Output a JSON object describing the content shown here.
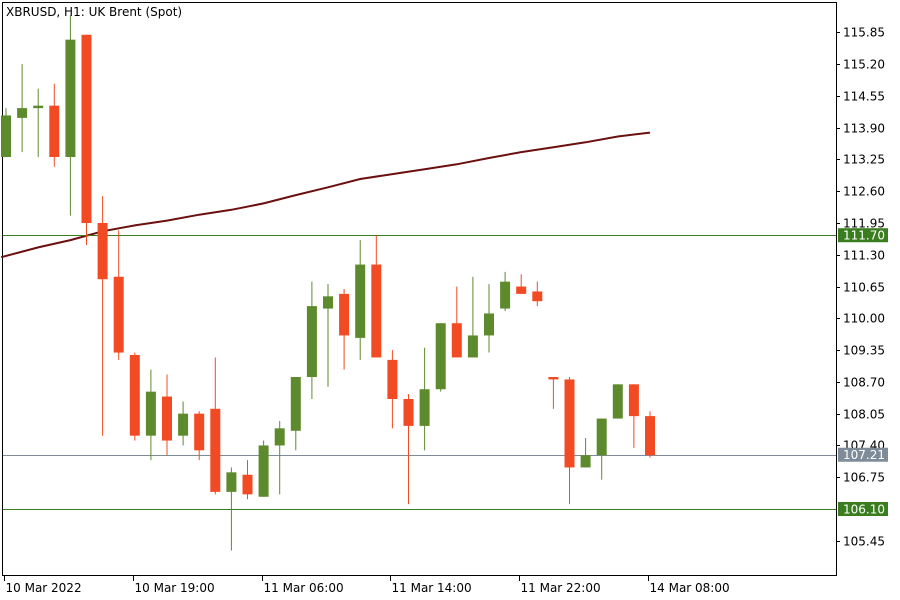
{
  "chart_data": {
    "type": "candlestick",
    "title": "XBRUSD, H1:  UK Brent (Spot)",
    "y_ticks": [
      "115.85",
      "115.20",
      "114.55",
      "113.90",
      "113.25",
      "112.60",
      "111.95",
      "111.30",
      "110.65",
      "110.00",
      "109.35",
      "108.70",
      "108.05",
      "107.40",
      "106.75",
      "105.45"
    ],
    "ylim": [
      104.75,
      116.45
    ],
    "x_ticks": [
      {
        "label": "10 Mar 2022",
        "index": 0
      },
      {
        "label": "10 Mar 19:00",
        "index": 8
      },
      {
        "label": "11 Mar 06:00",
        "index": 16
      },
      {
        "label": "11 Mar 14:00",
        "index": 24
      },
      {
        "label": "11 Mar 22:00",
        "index": 32
      },
      {
        "label": "14 Mar 08:00",
        "index": 40
      }
    ],
    "grid": false,
    "candles": [
      {
        "i": 0,
        "o": 113.3,
        "h": 114.3,
        "l": 113.3,
        "c": 114.15
      },
      {
        "i": 1,
        "o": 114.1,
        "h": 115.2,
        "l": 113.4,
        "c": 114.3
      },
      {
        "i": 2,
        "o": 114.3,
        "h": 114.7,
        "l": 113.3,
        "c": 114.35
      },
      {
        "i": 3,
        "o": 114.35,
        "h": 114.8,
        "l": 113.1,
        "c": 113.3
      },
      {
        "i": 4,
        "o": 113.3,
        "h": 116.2,
        "l": 112.1,
        "c": 115.7
      },
      {
        "i": 5,
        "o": 115.8,
        "h": 115.8,
        "l": 111.5,
        "c": 111.95
      },
      {
        "i": 6,
        "o": 111.95,
        "h": 112.5,
        "l": 107.6,
        "c": 110.8
      },
      {
        "i": 7,
        "o": 110.85,
        "h": 111.8,
        "l": 109.15,
        "c": 109.3
      },
      {
        "i": 8,
        "o": 109.25,
        "h": 109.3,
        "l": 107.5,
        "c": 107.6
      },
      {
        "i": 9,
        "o": 107.6,
        "h": 108.95,
        "l": 107.1,
        "c": 108.5
      },
      {
        "i": 10,
        "o": 108.4,
        "h": 108.85,
        "l": 107.2,
        "c": 107.5
      },
      {
        "i": 11,
        "o": 107.6,
        "h": 108.3,
        "l": 107.4,
        "c": 108.05
      },
      {
        "i": 12,
        "o": 108.05,
        "h": 108.1,
        "l": 107.1,
        "c": 107.3
      },
      {
        "i": 13,
        "o": 108.15,
        "h": 109.2,
        "l": 106.4,
        "c": 106.45
      },
      {
        "i": 14,
        "o": 106.45,
        "h": 106.95,
        "l": 105.25,
        "c": 106.85
      },
      {
        "i": 15,
        "o": 106.8,
        "h": 107.1,
        "l": 106.3,
        "c": 106.4
      },
      {
        "i": 16,
        "o": 106.35,
        "h": 107.5,
        "l": 106.35,
        "c": 107.4
      },
      {
        "i": 17,
        "o": 107.4,
        "h": 107.9,
        "l": 106.4,
        "c": 107.75
      },
      {
        "i": 18,
        "o": 107.7,
        "h": 108.8,
        "l": 107.3,
        "c": 108.8
      },
      {
        "i": 19,
        "o": 108.8,
        "h": 110.75,
        "l": 108.35,
        "c": 110.25
      },
      {
        "i": 20,
        "o": 110.2,
        "h": 110.7,
        "l": 108.6,
        "c": 110.45
      },
      {
        "i": 21,
        "o": 110.5,
        "h": 110.6,
        "l": 108.95,
        "c": 109.65
      },
      {
        "i": 22,
        "o": 109.6,
        "h": 111.6,
        "l": 109.15,
        "c": 111.1
      },
      {
        "i": 23,
        "o": 111.1,
        "h": 111.7,
        "l": 109.2,
        "c": 109.2
      },
      {
        "i": 24,
        "o": 109.15,
        "h": 109.35,
        "l": 107.75,
        "c": 108.35
      },
      {
        "i": 25,
        "o": 108.35,
        "h": 108.45,
        "l": 106.2,
        "c": 107.8
      },
      {
        "i": 26,
        "o": 107.8,
        "h": 109.4,
        "l": 107.3,
        "c": 108.55
      },
      {
        "i": 27,
        "o": 108.55,
        "h": 109.9,
        "l": 108.5,
        "c": 109.9
      },
      {
        "i": 28,
        "o": 109.9,
        "h": 110.65,
        "l": 109.2,
        "c": 109.2
      },
      {
        "i": 29,
        "o": 109.2,
        "h": 110.85,
        "l": 109.2,
        "c": 109.65
      },
      {
        "i": 30,
        "o": 109.65,
        "h": 110.7,
        "l": 109.3,
        "c": 110.1
      },
      {
        "i": 31,
        "o": 110.2,
        "h": 110.95,
        "l": 110.15,
        "c": 110.75
      },
      {
        "i": 32,
        "o": 110.65,
        "h": 110.9,
        "l": 110.5,
        "c": 110.5
      },
      {
        "i": 33,
        "o": 110.55,
        "h": 110.75,
        "l": 110.25,
        "c": 110.35
      },
      {
        "i": 34,
        "o": 108.8,
        "h": 108.8,
        "l": 108.15,
        "c": 108.75
      },
      {
        "i": 35,
        "o": 108.75,
        "h": 108.8,
        "l": 106.2,
        "c": 106.95
      },
      {
        "i": 36,
        "o": 106.95,
        "h": 107.55,
        "l": 106.95,
        "c": 107.2
      },
      {
        "i": 37,
        "o": 107.2,
        "h": 107.95,
        "l": 106.7,
        "c": 107.95
      },
      {
        "i": 38,
        "o": 107.95,
        "h": 108.65,
        "l": 107.95,
        "c": 108.65
      },
      {
        "i": 39,
        "o": 108.65,
        "h": 108.65,
        "l": 107.35,
        "c": 108.0
      },
      {
        "i": 40,
        "o": 108.0,
        "h": 108.1,
        "l": 107.15,
        "c": 107.2
      }
    ],
    "moving_average": [
      {
        "i": -0.3,
        "v": 111.25
      },
      {
        "i": 2,
        "v": 111.45
      },
      {
        "i": 4,
        "v": 111.6
      },
      {
        "i": 6,
        "v": 111.78
      },
      {
        "i": 8,
        "v": 111.9
      },
      {
        "i": 10,
        "v": 112.0
      },
      {
        "i": 12,
        "v": 112.12
      },
      {
        "i": 14,
        "v": 112.22
      },
      {
        "i": 16,
        "v": 112.35
      },
      {
        "i": 18,
        "v": 112.52
      },
      {
        "i": 20,
        "v": 112.68
      },
      {
        "i": 22,
        "v": 112.85
      },
      {
        "i": 24,
        "v": 112.95
      },
      {
        "i": 26,
        "v": 113.05
      },
      {
        "i": 28,
        "v": 113.15
      },
      {
        "i": 30,
        "v": 113.28
      },
      {
        "i": 32,
        "v": 113.4
      },
      {
        "i": 34,
        "v": 113.5
      },
      {
        "i": 36,
        "v": 113.6
      },
      {
        "i": 38,
        "v": 113.72
      },
      {
        "i": 40,
        "v": 113.8
      }
    ],
    "horizontal_lines": [
      {
        "value": 111.7,
        "label": "111.70",
        "badge_color": "#3a7d1e"
      },
      {
        "value": 107.21,
        "label": "107.21",
        "badge_color": "#7e8b98"
      },
      {
        "value": 106.1,
        "label": "106.10",
        "badge_color": "#3a7d1e"
      }
    ],
    "colors": {
      "bull": "#5e8a2e",
      "bear": "#f24b23",
      "wick_bull": "#5e8a2e",
      "wick_bear": "#f24b23",
      "ma": "#6b0f0f",
      "hline": "#3a7d1e",
      "hline_grey": "#7e8b98",
      "axis": "#000000"
    }
  }
}
